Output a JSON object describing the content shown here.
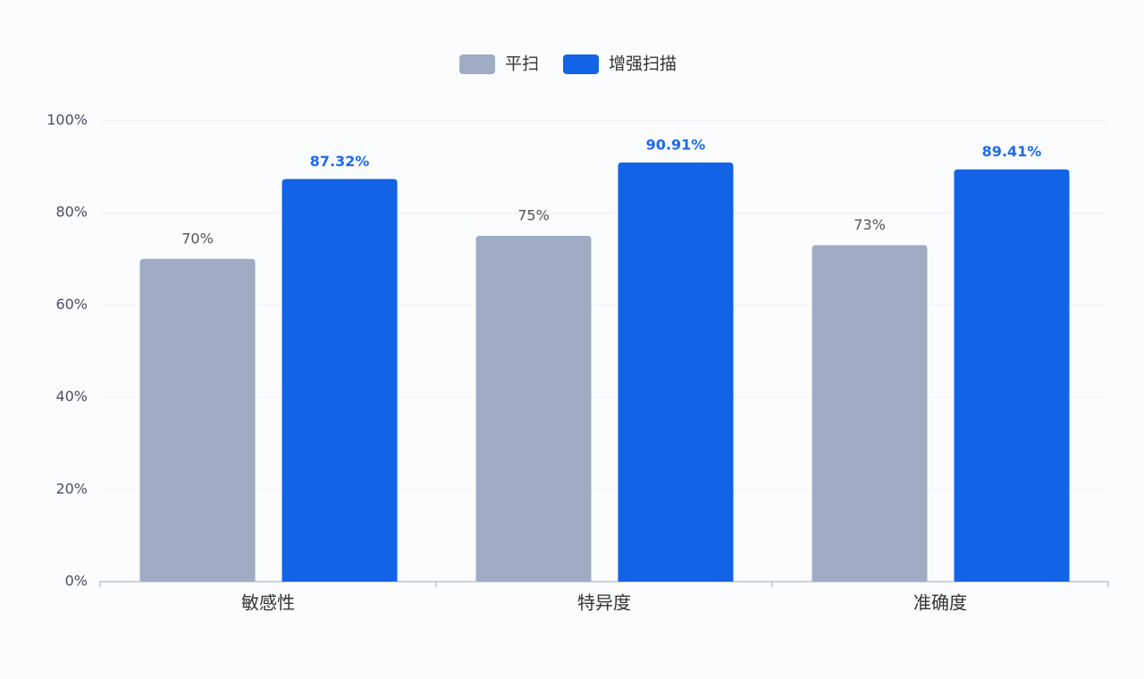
{
  "chart_data": {
    "type": "bar",
    "categories": [
      "敏感性",
      "特异度",
      "准确度"
    ],
    "series": [
      {
        "name": "平扫",
        "color": "#9eadc4",
        "values": [
          70,
          75,
          73
        ],
        "value_labels": [
          "70%",
          "75%",
          "73%"
        ]
      },
      {
        "name": "增强扫描",
        "color": "#1263e6",
        "values": [
          87.32,
          90.91,
          89.41
        ],
        "value_labels": [
          "87.32%",
          "90.91%",
          "89.41%"
        ]
      }
    ],
    "ylim": [
      0,
      100
    ],
    "yticks": [
      {
        "value": 0,
        "label": "0%"
      },
      {
        "value": 20,
        "label": "20%"
      },
      {
        "value": 40,
        "label": "40%"
      },
      {
        "value": 60,
        "label": "60%"
      },
      {
        "value": 80,
        "label": "80%"
      },
      {
        "value": 100,
        "label": "100%"
      }
    ],
    "grid": true,
    "legend": "top"
  }
}
